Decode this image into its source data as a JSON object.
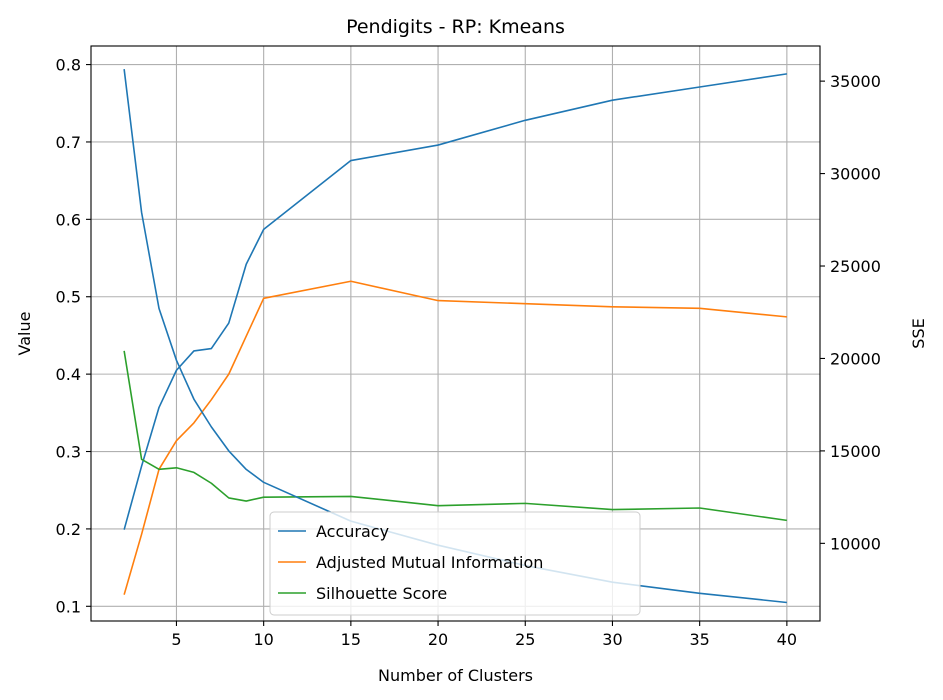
{
  "chart_data": {
    "type": "line",
    "title": "Pendigits - RP: Kmeans",
    "xlabel": "Number of Clusters",
    "ylabel": "Value",
    "y2label": "SSE",
    "xlim": [
      0.1,
      41.9
    ],
    "ylim": [
      0.081,
      0.824
    ],
    "y2lim": [
      5800,
      36900
    ],
    "xticks": [
      5,
      10,
      15,
      20,
      25,
      30,
      35,
      40
    ],
    "yticks": [
      0.1,
      0.2,
      0.3,
      0.4,
      0.5,
      0.6,
      0.7,
      0.8
    ],
    "y2ticks": [
      10000,
      15000,
      20000,
      25000,
      30000,
      35000
    ],
    "grid": true,
    "legend_position": "lower-center",
    "x": [
      2,
      3,
      4,
      5,
      6,
      7,
      8,
      9,
      10,
      15,
      20,
      25,
      30,
      35,
      40
    ],
    "series": [
      {
        "name": "Accuracy",
        "axis": "left",
        "color": "#1f77b4",
        "values": [
          0.199,
          0.281,
          0.357,
          0.405,
          0.43,
          0.433,
          0.466,
          0.542,
          0.587,
          0.676,
          0.696,
          0.728,
          0.754,
          0.771,
          0.788
        ]
      },
      {
        "name": "Adjusted Mutual Information",
        "axis": "left",
        "color": "#ff7f0e",
        "values": [
          0.115,
          0.193,
          0.277,
          0.314,
          0.337,
          0.367,
          0.4,
          0.449,
          0.498,
          0.52,
          0.495,
          0.491,
          0.487,
          0.485,
          0.474
        ]
      },
      {
        "name": "Silhouette Score",
        "axis": "left",
        "color": "#2ca02c",
        "values": [
          0.43,
          0.29,
          0.277,
          0.279,
          0.273,
          0.259,
          0.24,
          0.236,
          0.241,
          0.242,
          0.23,
          0.233,
          0.225,
          0.227,
          0.211
        ]
      },
      {
        "axis": "right",
        "color": "#1f77b4",
        "values": [
          35650,
          27900,
          22700,
          19900,
          17800,
          16300,
          15000,
          14000,
          13300,
          11200,
          9900,
          8800,
          7900,
          7300,
          6800
        ]
      }
    ]
  }
}
